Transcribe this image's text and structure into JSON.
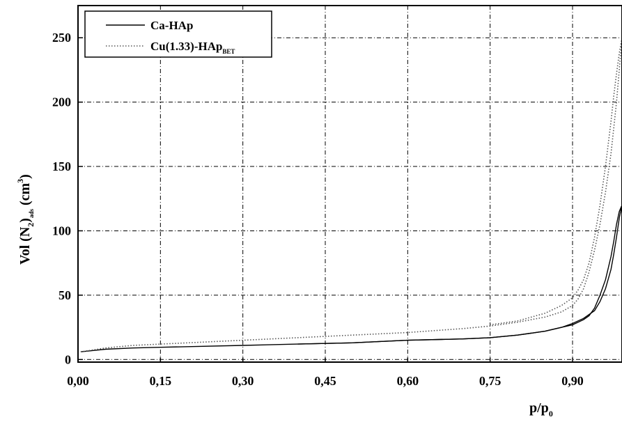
{
  "chart_data": {
    "type": "line",
    "xlabel": {
      "main": "p/p",
      "sub": "0"
    },
    "ylabel": {
      "main": "Vol (N",
      "sub1": "2",
      "mid": ")",
      "sub2": "ads",
      "tail": " (cm",
      "sup": "3",
      "end": ")"
    },
    "xlim": [
      0.0,
      0.99
    ],
    "ylim": [
      -2,
      275
    ],
    "x_ticks": [
      0.0,
      0.15,
      0.3,
      0.45,
      0.6,
      0.75,
      0.9
    ],
    "x_tick_labels": [
      "0,00",
      "0,15",
      "0,30",
      "0,45",
      "0,60",
      "0,75",
      "0,90"
    ],
    "y_ticks": [
      0,
      50,
      100,
      150,
      200,
      250
    ],
    "y_tick_labels": [
      "0",
      "50",
      "100",
      "150",
      "200",
      "250"
    ],
    "grid": true,
    "legend_position": "top-left",
    "series": [
      {
        "name": "Ca-HAp",
        "style": "solid",
        "color": "#000000",
        "branches": [
          {
            "x": [
              0.005,
              0.05,
              0.1,
              0.15,
              0.2,
              0.3,
              0.4,
              0.5,
              0.6,
              0.7,
              0.75,
              0.8,
              0.85,
              0.88,
              0.9,
              0.92,
              0.94,
              0.95,
              0.96,
              0.97,
              0.975,
              0.98,
              0.985,
              0.99
            ],
            "y": [
              6,
              8,
              9,
              9.5,
              10,
              11,
              12,
              13,
              15,
              16,
              17,
              19,
              22,
              25,
              28,
              32,
              38,
              45,
              55,
              70,
              82,
              95,
              110,
              120
            ]
          },
          {
            "x": [
              0.99,
              0.985,
              0.98,
              0.975,
              0.97,
              0.96,
              0.95,
              0.94,
              0.93,
              0.92,
              0.91,
              0.9,
              0.88,
              0.85,
              0.8,
              0.75,
              0.7,
              0.6,
              0.5,
              0.4
            ],
            "y": [
              120,
              115,
              105,
              92,
              80,
              62,
              50,
              40,
              34,
              31,
              29,
              27,
              25,
              22,
              19,
              17,
              16,
              15,
              13,
              12
            ]
          }
        ]
      },
      {
        "name": "Cu(1.33)-HAp",
        "name_sub": "BET",
        "style": "dotted",
        "color": "#555555",
        "branches": [
          {
            "x": [
              0.005,
              0.05,
              0.1,
              0.15,
              0.2,
              0.3,
              0.4,
              0.5,
              0.6,
              0.7,
              0.75,
              0.8,
              0.85,
              0.88,
              0.9,
              0.91,
              0.92,
              0.93,
              0.94,
              0.95,
              0.96,
              0.97,
              0.975,
              0.98,
              0.985,
              0.99
            ],
            "y": [
              6,
              9,
              11,
              12,
              13,
              15,
              17,
              19,
              21,
              24,
              26,
              29,
              33,
              37,
              42,
              47,
              55,
              68,
              85,
              105,
              130,
              160,
              180,
              200,
              225,
              250
            ]
          },
          {
            "x": [
              0.99,
              0.985,
              0.98,
              0.975,
              0.97,
              0.96,
              0.95,
              0.94,
              0.93,
              0.92,
              0.91,
              0.9,
              0.88,
              0.85,
              0.8,
              0.75
            ],
            "y": [
              250,
              238,
              222,
              205,
              185,
              150,
              120,
              95,
              75,
              62,
              54,
              48,
              42,
              36,
              30,
              27
            ]
          }
        ]
      }
    ]
  }
}
